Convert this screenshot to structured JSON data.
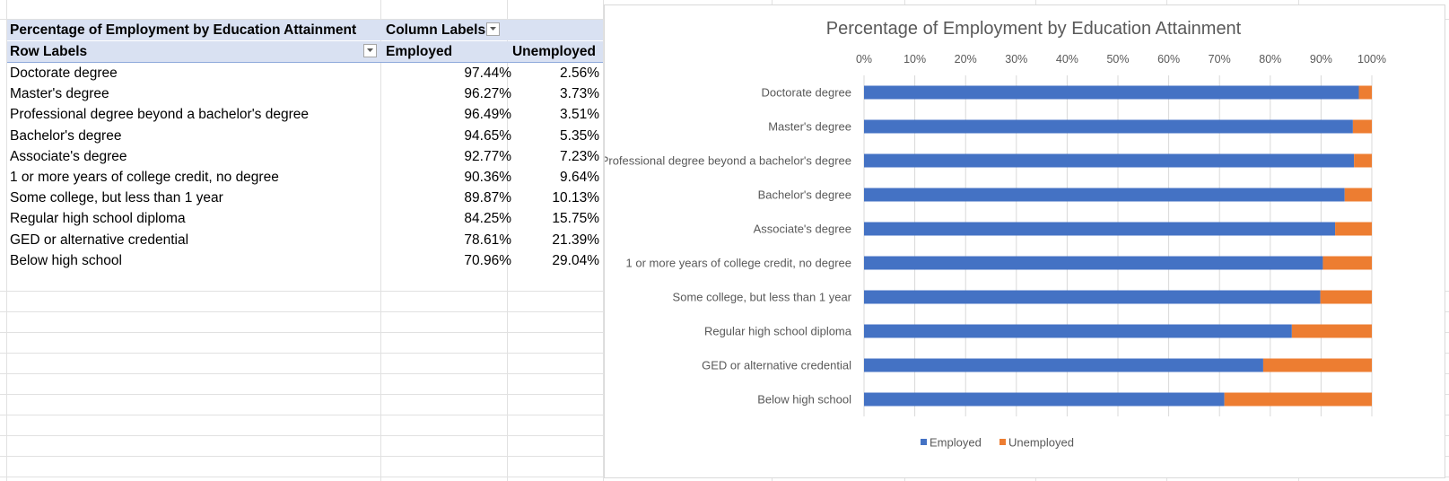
{
  "pivot": {
    "title": "Percentage of Employment by Education Attainment",
    "column_labels": "Column Labels",
    "row_labels": "Row Labels",
    "col_employed": "Employed",
    "col_unemployed": "Unemployed",
    "rows": [
      {
        "label": "Doctorate degree",
        "employed": "97.44%",
        "unemployed": "2.56%"
      },
      {
        "label": "Master's degree",
        "employed": "96.27%",
        "unemployed": "3.73%"
      },
      {
        "label": "Professional degree beyond a bachelor's degree",
        "employed": "96.49%",
        "unemployed": "3.51%"
      },
      {
        "label": "Bachelor's degree",
        "employed": "94.65%",
        "unemployed": "5.35%"
      },
      {
        "label": "Associate's degree",
        "employed": "92.77%",
        "unemployed": "7.23%"
      },
      {
        "label": "1 or more years of college credit, no degree",
        "employed": "90.36%",
        "unemployed": "9.64%"
      },
      {
        "label": "Some college, but less than 1 year",
        "employed": "89.87%",
        "unemployed": "10.13%"
      },
      {
        "label": "Regular high school diploma",
        "employed": "84.25%",
        "unemployed": "15.75%"
      },
      {
        "label": "GED or alternative credential",
        "employed": "78.61%",
        "unemployed": "21.39%"
      },
      {
        "label": "Below high school",
        "employed": "70.96%",
        "unemployed": "29.04%"
      }
    ]
  },
  "colors": {
    "employed": "#4472c4",
    "unemployed": "#ed7d31",
    "pivot_header": "#d9e1f2"
  },
  "chart_data": {
    "type": "bar",
    "orientation": "horizontal",
    "stacking": "percent",
    "title": "Percentage of Employment by Education Attainment",
    "categories": [
      "Doctorate degree",
      "Master's degree",
      "Professional degree beyond a bachelor's degree",
      "Bachelor's degree",
      "Associate's degree",
      "1 or more years of college credit, no degree",
      "Some college, but less than 1 year",
      "Regular high school diploma",
      "GED or alternative credential",
      "Below high school"
    ],
    "series": [
      {
        "name": "Employed",
        "values": [
          97.44,
          96.27,
          96.49,
          94.65,
          92.77,
          90.36,
          89.87,
          84.25,
          78.61,
          70.96
        ]
      },
      {
        "name": "Unemployed",
        "values": [
          2.56,
          3.73,
          3.51,
          5.35,
          7.23,
          9.64,
          10.13,
          15.75,
          21.39,
          29.04
        ]
      }
    ],
    "xlim": [
      0,
      100
    ],
    "xticks": [
      "0%",
      "10%",
      "20%",
      "30%",
      "40%",
      "50%",
      "60%",
      "70%",
      "80%",
      "90%",
      "100%"
    ],
    "axis_position": "top",
    "grid": true,
    "legend": "bottom"
  }
}
